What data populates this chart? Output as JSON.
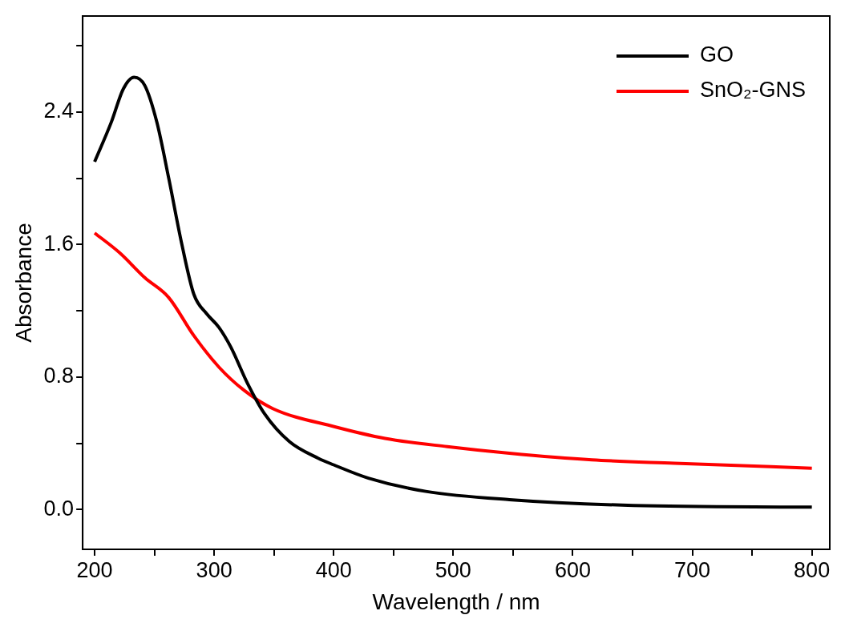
{
  "chart_data": {
    "type": "line",
    "xlabel": "Wavelength / nm",
    "ylabel": "Absorbance",
    "xlim": [
      190,
      815
    ],
    "ylim": [
      -0.24,
      2.98
    ],
    "xticks": [
      200,
      {
        "value": 250,
        "label": null
      },
      300,
      {
        "value": 350,
        "label": null
      },
      400,
      {
        "value": 450,
        "label": null
      },
      500,
      {
        "value": 550,
        "label": null
      },
      600,
      {
        "value": 650,
        "label": null
      },
      700,
      {
        "value": 750,
        "label": null
      },
      800
    ],
    "yticks": [
      {
        "value": 0,
        "label": "0.0"
      },
      {
        "value": 0.4,
        "label": null
      },
      0.8,
      {
        "value": 1.2,
        "label": null
      },
      1.6,
      {
        "value": 2.0,
        "label": null
      },
      2.4,
      {
        "value": 2.8,
        "label": null
      }
    ],
    "grid": false,
    "legend": "top right",
    "marker": "none",
    "line_style": "solid",
    "series": [
      {
        "name": "GO",
        "color": "#000000",
        "x": [
          200,
          214,
          224,
          233,
          242,
          252,
          262,
          273,
          283,
          294,
          304,
          314,
          328,
          342,
          363,
          387,
          400,
          429,
          477,
          547,
          651,
          800
        ],
        "values": [
          2.1,
          2.34,
          2.54,
          2.61,
          2.56,
          2.34,
          2.0,
          1.6,
          1.3,
          1.18,
          1.1,
          0.98,
          0.76,
          0.58,
          0.41,
          0.31,
          0.27,
          0.19,
          0.11,
          0.06,
          0.025,
          0.015
        ]
      },
      {
        "name": "SnO₂-GNS",
        "color": "#ff0000",
        "x": [
          200,
          221,
          242,
          262,
          283,
          304,
          325,
          349,
          401,
          443,
          495,
          547,
          616,
          685,
          800
        ],
        "values": [
          1.67,
          1.55,
          1.4,
          1.28,
          1.05,
          0.86,
          0.72,
          0.61,
          0.5,
          0.43,
          0.38,
          0.34,
          0.3,
          0.28,
          0.25
        ]
      }
    ]
  }
}
